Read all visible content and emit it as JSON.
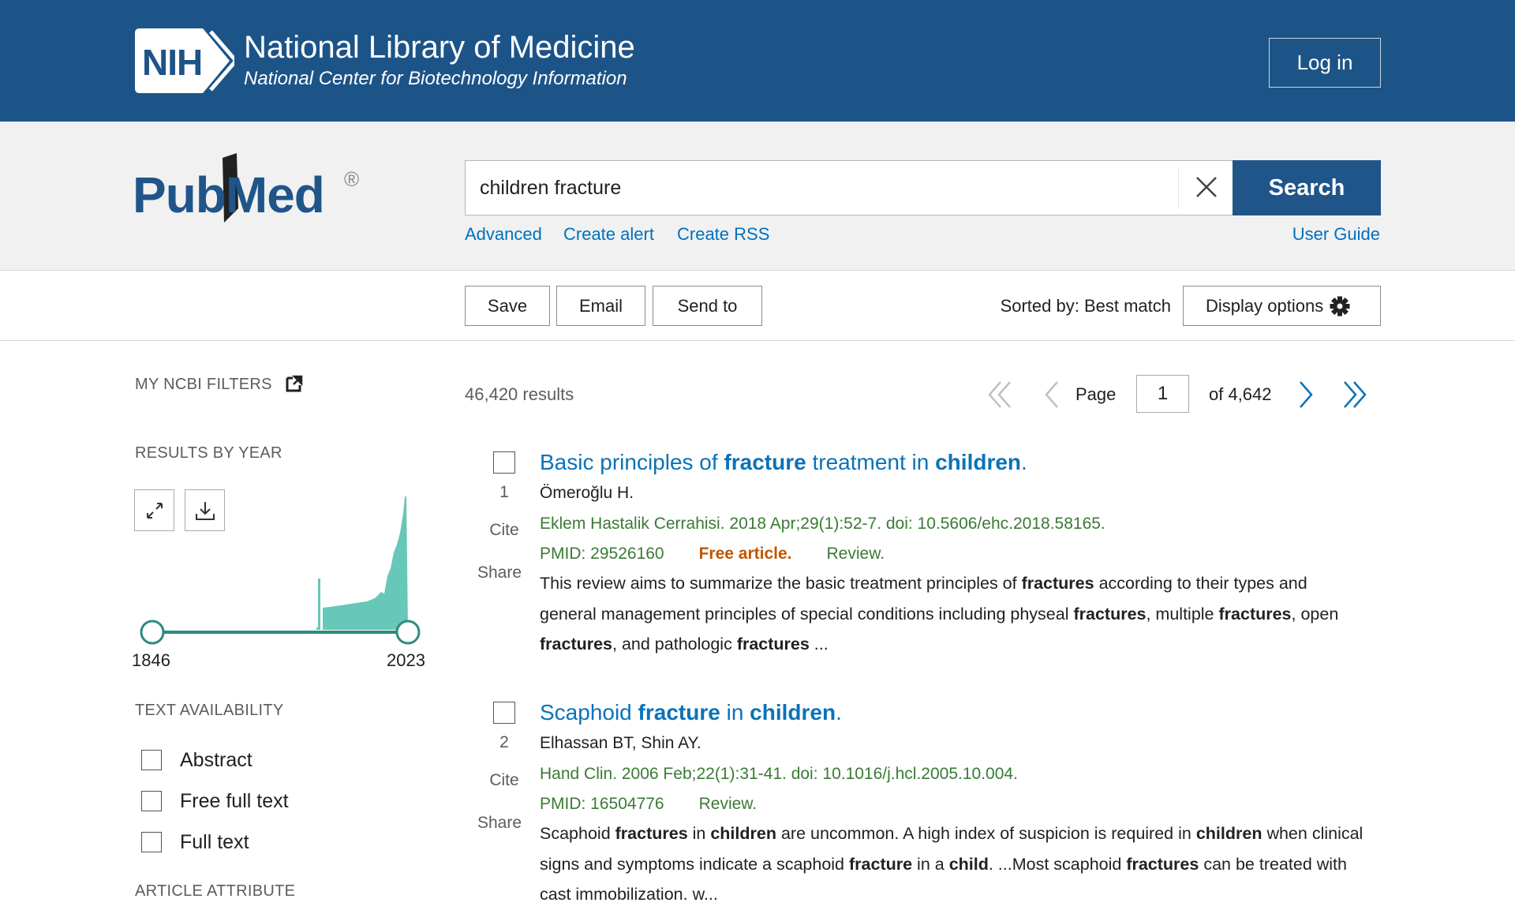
{
  "header": {
    "logo": "NIH",
    "title": "National Library of Medicine",
    "subtitle": "National Center for Biotechnology Information",
    "login": "Log in"
  },
  "search": {
    "logo": "PubMed",
    "registered": "®",
    "query": "children fracture",
    "button": "Search",
    "links": [
      "Advanced",
      "Create alert",
      "Create RSS"
    ],
    "user_guide": "User Guide"
  },
  "toolbar": {
    "actions": [
      "Save",
      "Email",
      "Send to"
    ],
    "sorted_by": "Sorted by: Best match",
    "display_options": "Display options"
  },
  "sidebar": {
    "my_ncbi_filters": "MY NCBI FILTERS",
    "results_by_year": "RESULTS BY YEAR",
    "year_start": 1846,
    "year_end": 2023,
    "text_availability": "TEXT AVAILABILITY",
    "filters": [
      "Abstract",
      "Free full text",
      "Full text"
    ],
    "article_attribute": "ARTICLE ATTRIBUTE"
  },
  "results": {
    "count": "46,420 results",
    "page_label": "Page",
    "page": 1,
    "of_pages": "of 4,642",
    "items": [
      {
        "number": 1,
        "cite": "Cite",
        "share": "Share",
        "title": [
          "Basic principles of ",
          "fracture",
          " treatment in ",
          "children",
          "."
        ],
        "authors": "Ömeroğlu H.",
        "citation": "Eklem Hastalik Cerrahisi. 2018 Apr;29(1):52-7. doi: 10.5606/ehc.2018.58165.",
        "pmid": "PMID: 29526160",
        "free": "Free article.",
        "article_type": "Review.",
        "snippet": [
          "This review aims to summarize the basic treatment principles of ",
          "fractures",
          " according to their types and general management principles of special conditions including physeal ",
          "fractures",
          ", multiple ",
          "fractures",
          ", open ",
          "fractures",
          ", and pathologic ",
          "fractures",
          " ..."
        ]
      },
      {
        "number": 2,
        "cite": "Cite",
        "share": "Share",
        "title": [
          "Scaphoid ",
          "fracture",
          " in ",
          "children",
          "."
        ],
        "authors": "Elhassan BT, Shin AY.",
        "citation": "Hand Clin. 2006 Feb;22(1):31-41. doi: 10.1016/j.hcl.2005.10.004.",
        "pmid": "PMID: 16504776",
        "article_type": "Review.",
        "snippet": [
          "Scaphoid ",
          "fractures",
          " in ",
          "children",
          " are uncommon. A high index of suspicion is required in ",
          "children",
          " when clinical signs and symptoms indicate a scaphoid ",
          "fracture",
          " in a ",
          "child",
          ". ...Most scaphoid ",
          "fractures",
          " can be treated with cast immobilization. w..."
        ]
      }
    ]
  }
}
